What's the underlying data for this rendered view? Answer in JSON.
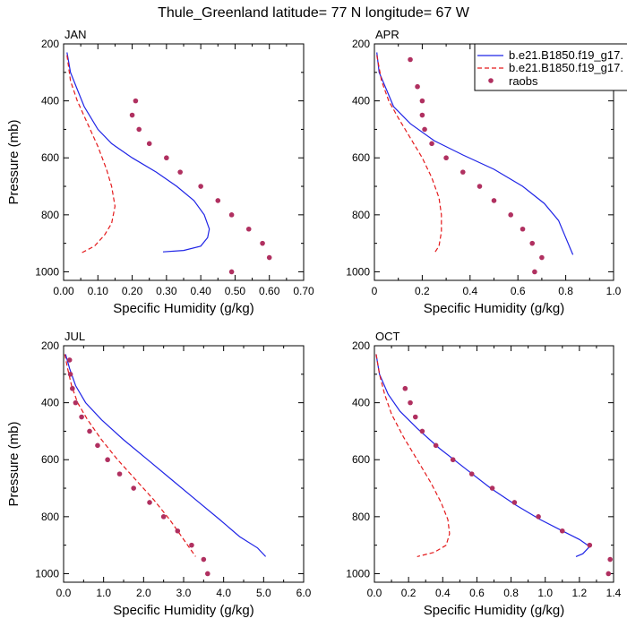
{
  "title": "Thule_Greenland  latitude= 77 N longitude= 67 W",
  "colors": {
    "model_a": "#1f24e6",
    "model_b": "#e41a1c",
    "raobs": "#b03060",
    "frame": "#000000"
  },
  "legend": {
    "entries": [
      {
        "label": "b.e21.B1850.f19_g17.",
        "style": "solid"
      },
      {
        "label": "b.e21.B1850.f19_g17.",
        "style": "dashed"
      },
      {
        "label": "raobs",
        "style": "dots"
      }
    ]
  },
  "chart_data": [
    {
      "type": "line",
      "label": "JAN",
      "xlabel": "Specific Humidity (g/kg)",
      "ylabel": "Pressure (mb)",
      "xlim": [
        0,
        0.7
      ],
      "ylim": [
        200,
        1030
      ],
      "xticks": [
        0,
        0.1,
        0.2,
        0.3,
        0.4,
        0.5,
        0.6,
        0.7
      ],
      "xtick_labels": [
        "0.00",
        "0.10",
        "0.20",
        "0.30",
        "0.40",
        "0.50",
        "0.60",
        "0.70"
      ],
      "yticks": [
        200,
        400,
        600,
        800,
        1000
      ],
      "series": [
        {
          "name": "b.e21.B1850.f19_g17. (solid)",
          "style": "solid",
          "points": [
            [
              0.01,
              230
            ],
            [
              0.02,
              300
            ],
            [
              0.04,
              360
            ],
            [
              0.06,
              420
            ],
            [
              0.1,
              500
            ],
            [
              0.14,
              550
            ],
            [
              0.2,
              600
            ],
            [
              0.27,
              650
            ],
            [
              0.33,
              700
            ],
            [
              0.38,
              750
            ],
            [
              0.41,
              800
            ],
            [
              0.425,
              850
            ],
            [
              0.42,
              880
            ],
            [
              0.4,
              910
            ],
            [
              0.35,
              925
            ],
            [
              0.29,
              930
            ]
          ]
        },
        {
          "name": "b.e21.B1850.f19_g17. (dashed)",
          "style": "dashed",
          "points": [
            [
              0.01,
              240
            ],
            [
              0.02,
              330
            ],
            [
              0.04,
              400
            ],
            [
              0.07,
              480
            ],
            [
              0.1,
              560
            ],
            [
              0.125,
              640
            ],
            [
              0.14,
              700
            ],
            [
              0.15,
              770
            ],
            [
              0.14,
              830
            ],
            [
              0.12,
              870
            ],
            [
              0.09,
              910
            ],
            [
              0.05,
              935
            ]
          ]
        },
        {
          "name": "raobs",
          "style": "dots",
          "points": [
            [
              0.21,
              400
            ],
            [
              0.2,
              450
            ],
            [
              0.22,
              500
            ],
            [
              0.25,
              550
            ],
            [
              0.3,
              600
            ],
            [
              0.34,
              650
            ],
            [
              0.4,
              700
            ],
            [
              0.45,
              750
            ],
            [
              0.49,
              800
            ],
            [
              0.54,
              850
            ],
            [
              0.58,
              900
            ],
            [
              0.6,
              950
            ],
            [
              0.49,
              1000
            ]
          ]
        }
      ]
    },
    {
      "type": "line",
      "label": "APR",
      "xlabel": "Specific Humidity (g/kg)",
      "ylabel": "",
      "xlim": [
        0,
        1.0
      ],
      "ylim": [
        200,
        1030
      ],
      "xticks": [
        0,
        0.2,
        0.4,
        0.6,
        0.8,
        1.0
      ],
      "xtick_labels": [
        "0",
        "0.2",
        "0.4",
        "0.6",
        "0.8",
        "1.0"
      ],
      "yticks": [
        200,
        400,
        600,
        800,
        1000
      ],
      "series": [
        {
          "name": "b.e21.B1850.f19_g17. (solid)",
          "style": "solid",
          "points": [
            [
              0.01,
              230
            ],
            [
              0.02,
              300
            ],
            [
              0.05,
              360
            ],
            [
              0.08,
              420
            ],
            [
              0.15,
              480
            ],
            [
              0.25,
              540
            ],
            [
              0.37,
              590
            ],
            [
              0.5,
              640
            ],
            [
              0.62,
              700
            ],
            [
              0.71,
              760
            ],
            [
              0.77,
              820
            ],
            [
              0.8,
              880
            ],
            [
              0.82,
              920
            ],
            [
              0.83,
              940
            ]
          ]
        },
        {
          "name": "b.e21.B1850.f19_g17. (dashed)",
          "style": "dashed",
          "points": [
            [
              0.01,
              240
            ],
            [
              0.03,
              330
            ],
            [
              0.06,
              400
            ],
            [
              0.1,
              460
            ],
            [
              0.15,
              530
            ],
            [
              0.2,
              600
            ],
            [
              0.24,
              670
            ],
            [
              0.27,
              740
            ],
            [
              0.28,
              800
            ],
            [
              0.28,
              860
            ],
            [
              0.27,
              910
            ],
            [
              0.25,
              935
            ]
          ]
        },
        {
          "name": "raobs",
          "style": "dots",
          "points": [
            [
              0.15,
              255
            ],
            [
              0.18,
              350
            ],
            [
              0.2,
              400
            ],
            [
              0.2,
              450
            ],
            [
              0.21,
              500
            ],
            [
              0.24,
              550
            ],
            [
              0.3,
              600
            ],
            [
              0.37,
              650
            ],
            [
              0.44,
              700
            ],
            [
              0.5,
              750
            ],
            [
              0.57,
              800
            ],
            [
              0.62,
              850
            ],
            [
              0.66,
              900
            ],
            [
              0.7,
              950
            ],
            [
              0.67,
              1000
            ]
          ]
        }
      ]
    },
    {
      "type": "line",
      "label": "JUL",
      "xlabel": "Specific Humidity (g/kg)",
      "ylabel": "Pressure (mb)",
      "xlim": [
        0,
        6.0
      ],
      "ylim": [
        200,
        1030
      ],
      "xticks": [
        0,
        1,
        2,
        3,
        4,
        5,
        6
      ],
      "xtick_labels": [
        "0.0",
        "1.0",
        "2.0",
        "3.0",
        "4.0",
        "5.0",
        "6.0"
      ],
      "yticks": [
        200,
        400,
        600,
        800,
        1000
      ],
      "series": [
        {
          "name": "b.e21.B1850.f19_g17. (solid)",
          "style": "solid",
          "points": [
            [
              0.05,
              230
            ],
            [
              0.15,
              280
            ],
            [
              0.3,
              340
            ],
            [
              0.55,
              400
            ],
            [
              0.95,
              460
            ],
            [
              1.5,
              530
            ],
            [
              2.1,
              600
            ],
            [
              2.7,
              670
            ],
            [
              3.3,
              740
            ],
            [
              3.9,
              810
            ],
            [
              4.4,
              870
            ],
            [
              4.85,
              910
            ],
            [
              5.05,
              940
            ]
          ]
        },
        {
          "name": "b.e21.B1850.f19_g17. (dashed)",
          "style": "dashed",
          "points": [
            [
              0.03,
              230
            ],
            [
              0.1,
              280
            ],
            [
              0.2,
              340
            ],
            [
              0.35,
              400
            ],
            [
              0.6,
              460
            ],
            [
              0.95,
              530
            ],
            [
              1.35,
              600
            ],
            [
              1.8,
              670
            ],
            [
              2.25,
              740
            ],
            [
              2.65,
              810
            ],
            [
              2.95,
              870
            ],
            [
              3.15,
              910
            ],
            [
              3.3,
              940
            ]
          ]
        },
        {
          "name": "raobs",
          "style": "dots",
          "points": [
            [
              0.15,
              250
            ],
            [
              0.17,
              300
            ],
            [
              0.22,
              350
            ],
            [
              0.3,
              400
            ],
            [
              0.45,
              450
            ],
            [
              0.65,
              500
            ],
            [
              0.85,
              550
            ],
            [
              1.1,
              600
            ],
            [
              1.4,
              650
            ],
            [
              1.75,
              700
            ],
            [
              2.15,
              750
            ],
            [
              2.5,
              800
            ],
            [
              2.85,
              850
            ],
            [
              3.2,
              900
            ],
            [
              3.5,
              950
            ],
            [
              3.6,
              1000
            ]
          ]
        }
      ]
    },
    {
      "type": "line",
      "label": "OCT",
      "xlabel": "Specific Humidity (g/kg)",
      "ylabel": "",
      "xlim": [
        0,
        1.4
      ],
      "ylim": [
        200,
        1030
      ],
      "xticks": [
        0,
        0.2,
        0.4,
        0.6,
        0.8,
        1.0,
        1.2,
        1.4
      ],
      "xtick_labels": [
        "0.0",
        "0.2",
        "0.4",
        "0.6",
        "0.8",
        "1.0",
        "1.2",
        "1.4"
      ],
      "yticks": [
        200,
        400,
        600,
        800,
        1000
      ],
      "series": [
        {
          "name": "b.e21.B1850.f19_g17. (solid)",
          "style": "solid",
          "points": [
            [
              0.01,
              230
            ],
            [
              0.03,
              300
            ],
            [
              0.08,
              370
            ],
            [
              0.15,
              430
            ],
            [
              0.25,
              490
            ],
            [
              0.38,
              560
            ],
            [
              0.53,
              630
            ],
            [
              0.68,
              700
            ],
            [
              0.83,
              760
            ],
            [
              0.97,
              810
            ],
            [
              1.1,
              850
            ],
            [
              1.2,
              880
            ],
            [
              1.26,
              905
            ],
            [
              1.22,
              930
            ],
            [
              1.18,
              940
            ]
          ]
        },
        {
          "name": "b.e21.B1850.f19_g17. (dashed)",
          "style": "dashed",
          "points": [
            [
              0.01,
              230
            ],
            [
              0.03,
              300
            ],
            [
              0.06,
              370
            ],
            [
              0.1,
              440
            ],
            [
              0.17,
              520
            ],
            [
              0.25,
              600
            ],
            [
              0.33,
              680
            ],
            [
              0.39,
              750
            ],
            [
              0.43,
              810
            ],
            [
              0.44,
              860
            ],
            [
              0.42,
              900
            ],
            [
              0.35,
              925
            ],
            [
              0.25,
              940
            ]
          ]
        },
        {
          "name": "raobs",
          "style": "dots",
          "points": [
            [
              0.18,
              350
            ],
            [
              0.21,
              400
            ],
            [
              0.24,
              450
            ],
            [
              0.28,
              500
            ],
            [
              0.36,
              550
            ],
            [
              0.46,
              600
            ],
            [
              0.57,
              650
            ],
            [
              0.69,
              700
            ],
            [
              0.82,
              750
            ],
            [
              0.96,
              800
            ],
            [
              1.1,
              850
            ],
            [
              1.26,
              900
            ],
            [
              1.38,
              950
            ],
            [
              1.37,
              1000
            ]
          ]
        }
      ]
    }
  ]
}
